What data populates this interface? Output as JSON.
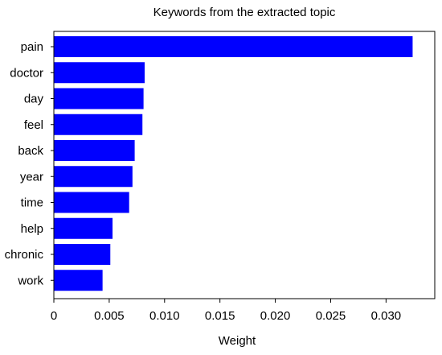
{
  "chart_data": {
    "type": "bar",
    "orientation": "horizontal",
    "title": "Keywords from the extracted topic",
    "xlabel": "Weight",
    "ylabel": "",
    "categories": [
      "pain",
      "doctor",
      "day",
      "feel",
      "back",
      "year",
      "time",
      "help",
      "chronic",
      "work"
    ],
    "values": [
      0.0324,
      0.0082,
      0.0081,
      0.008,
      0.0073,
      0.0071,
      0.0068,
      0.0053,
      0.0051,
      0.0044
    ],
    "xlim": [
      0,
      0.0344
    ],
    "xticks": [
      0,
      0.005,
      0.01,
      0.015,
      0.02,
      0.025,
      0.03
    ],
    "xtick_labels": [
      "0",
      "0.005",
      "0.010",
      "0.015",
      "0.020",
      "0.025",
      "0.030"
    ],
    "bar_color": "#0000ff",
    "grid": false,
    "legend": "none"
  }
}
